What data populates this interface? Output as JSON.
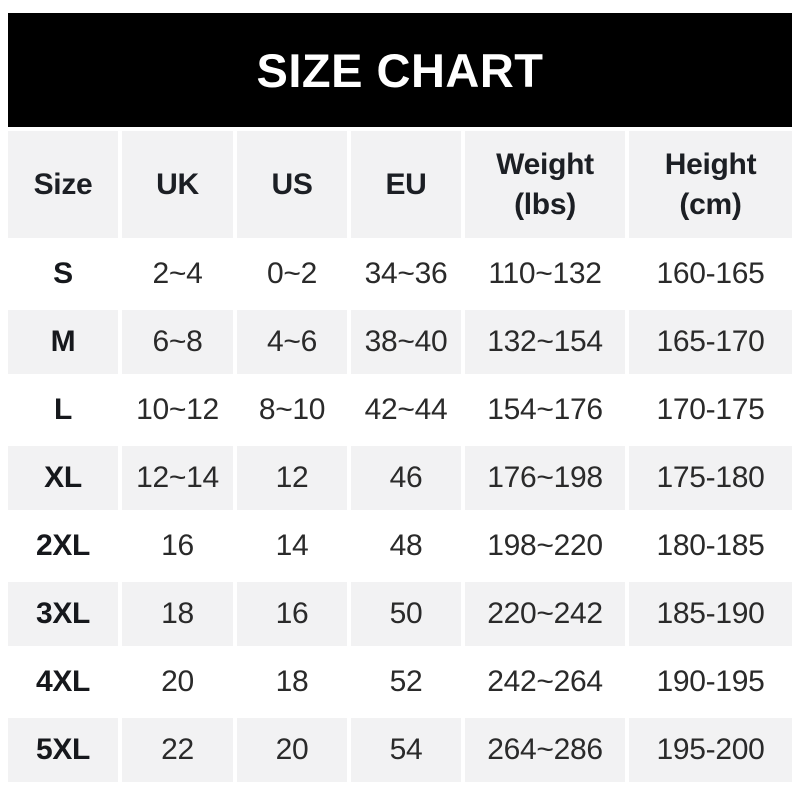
{
  "title": "SIZE CHART",
  "colors": {
    "banner_bg": "#000000",
    "banner_text": "#ffffff",
    "alt_row_bg": "#f2f2f3",
    "header_text": "#1c1f24",
    "data_text": "#2a2a2a",
    "page_bg": "#ffffff"
  },
  "chart_data": {
    "type": "table",
    "title": "SIZE CHART",
    "columns": [
      "Size",
      "UK",
      "US",
      "EU",
      "Weight (lbs)",
      "Height (cm)"
    ],
    "rows": [
      [
        "S",
        "2~4",
        "0~2",
        "34~36",
        "110~132",
        "160-165"
      ],
      [
        "M",
        "6~8",
        "4~6",
        "38~40",
        "132~154",
        "165-170"
      ],
      [
        "L",
        "10~12",
        "8~10",
        "42~44",
        "154~176",
        "170-175"
      ],
      [
        "XL",
        "12~14",
        "12",
        "46",
        "176~198",
        "175-180"
      ],
      [
        "2XL",
        "16",
        "14",
        "48",
        "198~220",
        "180-185"
      ],
      [
        "3XL",
        "18",
        "16",
        "50",
        "220~242",
        "185-190"
      ],
      [
        "4XL",
        "20",
        "18",
        "52",
        "242~264",
        "190-195"
      ],
      [
        "5XL",
        "22",
        "20",
        "54",
        "264~286",
        "195-200"
      ]
    ]
  }
}
